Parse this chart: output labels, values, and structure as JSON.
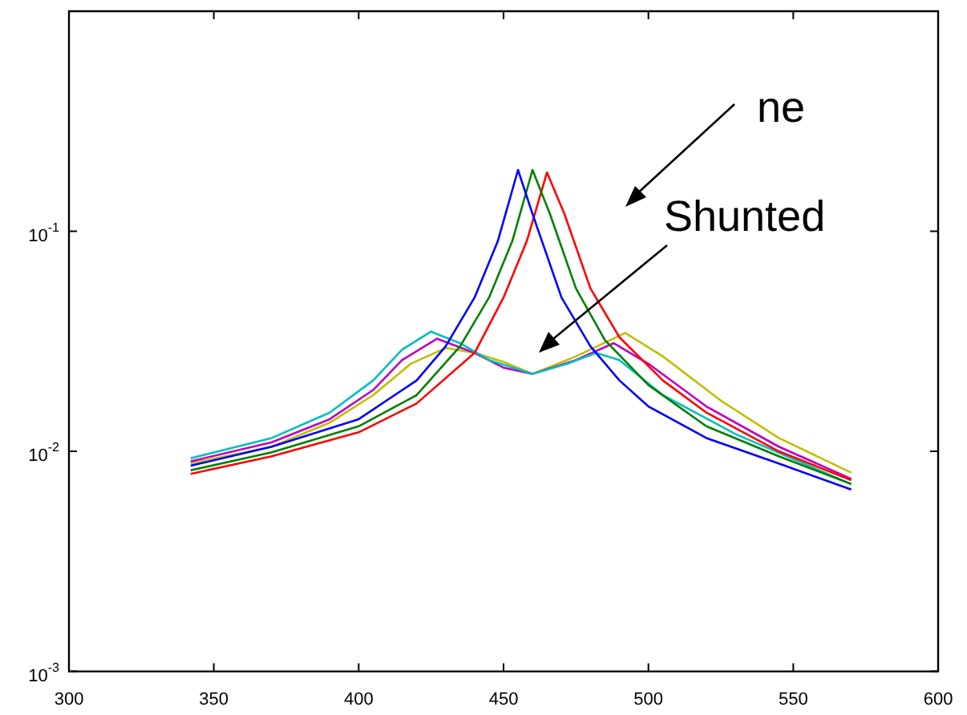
{
  "chart_data": {
    "type": "line",
    "xlim": [
      300,
      600
    ],
    "xticks": [
      300,
      350,
      400,
      450,
      500,
      550,
      600
    ],
    "ylim": [
      0.001,
      1
    ],
    "yticks": [
      {
        "value": 0.001,
        "label": "10$^{-3}$"
      },
      {
        "value": 0.01,
        "label": "10$^{-2}$"
      },
      {
        "value": 0.1,
        "label": "10$^{-1}$"
      },
      {
        "value": 1,
        "label": null
      }
    ],
    "log": "y",
    "grid": false,
    "legend": false,
    "marker": "none",
    "line_style": "solid",
    "annotations": [
      "ne",
      "Shunted"
    ],
    "series": [
      {
        "color": "#0000ff",
        "x": [
          342,
          370,
          400,
          420,
          430,
          440,
          448,
          455,
          460,
          470,
          480,
          490,
          500,
          520,
          545,
          570
        ],
        "values": [
          0.0086,
          0.0105,
          0.014,
          0.021,
          0.03,
          0.05,
          0.09,
          0.19,
          0.12,
          0.05,
          0.03,
          0.021,
          0.016,
          0.0115,
          0.0088,
          0.0067
        ]
      },
      {
        "color": "#008000",
        "x": [
          342,
          370,
          400,
          420,
          435,
          445,
          453,
          460,
          466,
          475,
          485,
          500,
          520,
          545,
          570
        ],
        "values": [
          0.0082,
          0.0099,
          0.013,
          0.018,
          0.03,
          0.05,
          0.09,
          0.19,
          0.12,
          0.055,
          0.032,
          0.02,
          0.013,
          0.0095,
          0.0071
        ]
      },
      {
        "color": "#ff0000",
        "x": [
          342,
          370,
          400,
          420,
          440,
          450,
          458,
          465,
          471,
          480,
          490,
          505,
          520,
          545,
          570
        ],
        "values": [
          0.0079,
          0.0095,
          0.0122,
          0.0165,
          0.028,
          0.05,
          0.09,
          0.185,
          0.12,
          0.055,
          0.033,
          0.021,
          0.015,
          0.01,
          0.0074
        ]
      },
      {
        "color": "#00bfbf",
        "x": [
          342,
          370,
          390,
          405,
          415,
          425,
          435,
          445,
          460,
          472,
          482,
          490,
          505,
          530,
          570
        ],
        "values": [
          0.0093,
          0.0115,
          0.015,
          0.021,
          0.029,
          0.035,
          0.031,
          0.026,
          0.0225,
          0.025,
          0.028,
          0.026,
          0.018,
          0.012,
          0.0071
        ]
      },
      {
        "color": "#bf00bf",
        "x": [
          342,
          370,
          390,
          405,
          415,
          427,
          440,
          450,
          460,
          475,
          488,
          500,
          520,
          545,
          570
        ],
        "values": [
          0.009,
          0.011,
          0.014,
          0.019,
          0.026,
          0.0325,
          0.028,
          0.024,
          0.0225,
          0.026,
          0.031,
          0.025,
          0.016,
          0.0105,
          0.0075
        ]
      },
      {
        "color": "#bfbf00",
        "x": [
          342,
          370,
          390,
          405,
          418,
          430,
          440,
          450,
          460,
          475,
          492,
          505,
          525,
          545,
          570
        ],
        "values": [
          0.0088,
          0.0105,
          0.0135,
          0.018,
          0.025,
          0.0295,
          0.028,
          0.0255,
          0.0225,
          0.027,
          0.0345,
          0.027,
          0.017,
          0.0115,
          0.008
        ]
      }
    ]
  }
}
